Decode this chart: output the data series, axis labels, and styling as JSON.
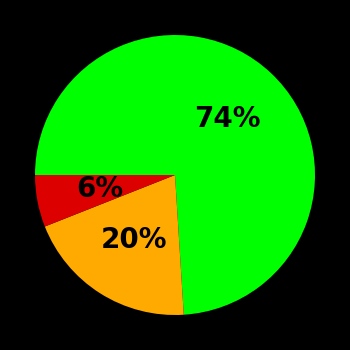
{
  "slices": [
    74,
    20,
    6
  ],
  "colors": [
    "#00ff00",
    "#ffaa00",
    "#dd0000"
  ],
  "labels": [
    "74%",
    "20%",
    "6%"
  ],
  "background_color": "#000000",
  "text_color": "#000000",
  "startangle": 180,
  "label_fontsize": 20,
  "label_fontweight": "bold",
  "label_radii": [
    0.55,
    0.55,
    0.55
  ]
}
